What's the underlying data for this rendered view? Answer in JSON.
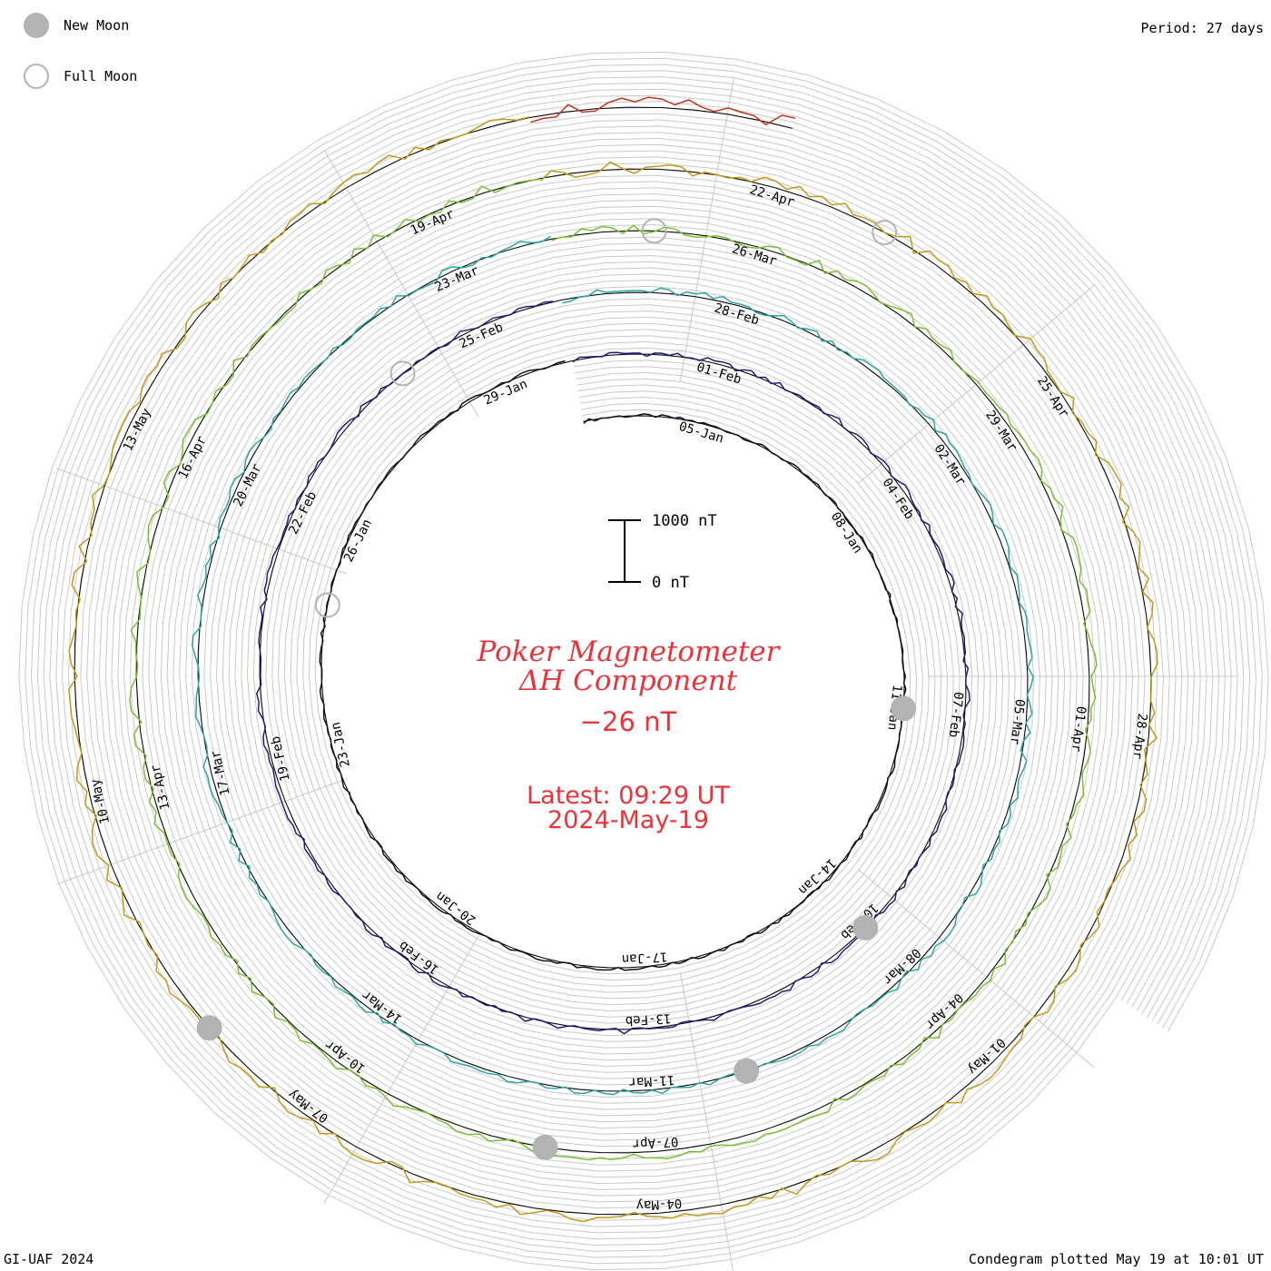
{
  "header": {
    "period_label": "Period: 27 days"
  },
  "legend": {
    "new_moon_label": "New Moon",
    "full_moon_label": "Full Moon",
    "new_moon_color": "#b3b3b3",
    "full_moon_color": "#b3b3b3"
  },
  "center": {
    "title_line1": "Poker Magnetometer",
    "title_line2": "ΔH Component",
    "current_value": "−26 nT",
    "latest_line": "Latest: 09:29 UT",
    "date_line": "2024-May-19",
    "text_color": "#e8343a"
  },
  "scale_bar": {
    "top_label": "1000 nT",
    "bottom_label": "0 nT",
    "value_nT": 1000
  },
  "footer": {
    "credit": "GI-UAF 2024",
    "plotted": "Condegram plotted May 19 at 10:01 UT"
  },
  "chart_data": {
    "type": "line",
    "subtype": "condegram-spiral",
    "period_days": 27,
    "start_date": "2024-01-03",
    "end_date": "2024-05-19",
    "units": "nT",
    "grid": true,
    "series": [
      {
        "cycle": 1,
        "color": "#111122",
        "date_labels": [
          "05-Jan",
          "08-Jan",
          "11-Jan",
          "14-Jan",
          "17-Jan",
          "20-Jan",
          "23-Jan",
          "26-Jan",
          "29-Jan"
        ]
      },
      {
        "cycle": 2,
        "color": "#1c1c80",
        "date_labels": [
          "01-Feb",
          "04-Feb",
          "07-Feb",
          "10-Feb",
          "13-Feb",
          "16-Feb",
          "19-Feb",
          "22-Feb",
          "25-Feb"
        ]
      },
      {
        "cycle": 3,
        "color": "#2aa7a0",
        "date_labels": [
          "28-Feb",
          "02-Mar",
          "05-Mar",
          "08-Mar",
          "11-Mar",
          "14-Mar",
          "17-Mar",
          "20-Mar",
          "23-Mar"
        ]
      },
      {
        "cycle": 4,
        "color": "#7ac033",
        "date_labels": [
          "26-Mar",
          "29-Mar",
          "01-Apr",
          "04-Apr",
          "07-Apr",
          "10-Apr",
          "13-Apr",
          "16-Apr",
          "19-Apr"
        ]
      },
      {
        "cycle": 5,
        "color": "#c29a1a",
        "date_labels": [
          "22-Apr",
          "25-Apr",
          "28-Apr",
          "01-May",
          "04-May",
          "07-May",
          "10-May",
          "13-May"
        ]
      },
      {
        "cycle": 6,
        "color": "#c2331a",
        "date_labels": []
      }
    ],
    "series_values": [
      [
        0,
        12,
        8,
        30,
        15,
        22,
        40,
        35,
        18,
        10,
        25,
        30
      ],
      [
        20,
        35,
        60,
        40,
        30,
        55,
        45,
        30,
        60,
        40,
        35,
        50
      ],
      [
        25,
        60,
        90,
        70,
        55,
        80,
        60,
        45,
        75,
        65,
        40,
        55
      ],
      [
        30,
        80,
        140,
        110,
        70,
        90,
        120,
        80,
        100,
        90,
        60,
        70
      ],
      [
        40,
        90,
        160,
        120,
        100,
        150,
        110,
        90,
        130,
        100,
        80,
        90
      ],
      [
        60,
        150,
        900,
        400,
        200,
        180,
        220,
        160,
        300,
        250,
        180,
        200
      ]
    ],
    "new_moons": [
      "2024-01-11",
      "2024-02-10",
      "2024-03-10",
      "2024-04-08",
      "2024-05-08"
    ],
    "full_moons": [
      "2024-01-25",
      "2024-02-24",
      "2024-03-25",
      "2024-04-23"
    ]
  }
}
